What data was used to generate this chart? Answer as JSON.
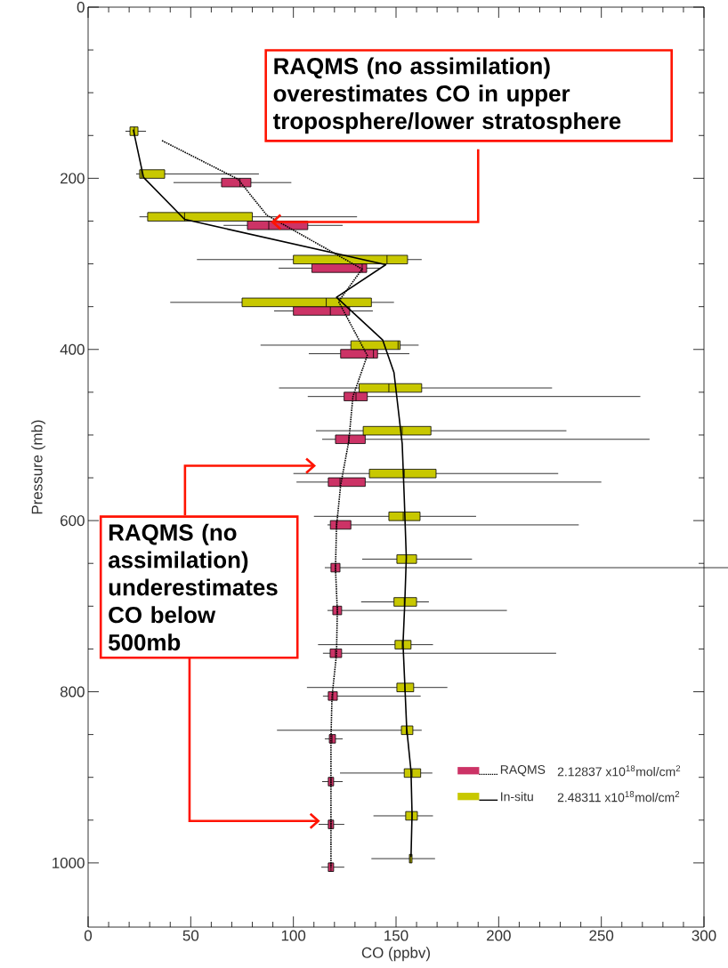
{
  "chart_data": {
    "type": "box",
    "orientation": "horizontal",
    "xlabel": "CO (ppbv)",
    "ylabel": "Pressure (mb)",
    "xlim": [
      0,
      300
    ],
    "xticks": [
      0,
      50,
      100,
      150,
      200,
      250,
      300
    ],
    "ylim": [
      1075,
      0
    ],
    "yticks": [
      0,
      200,
      400,
      600,
      800,
      1000
    ],
    "legend": "bottom right",
    "annotations": [
      {
        "text": "RAQMS (no assimilation) overestimates CO in upper troposphere/lower stratosphere",
        "x": 89,
        "y": 251
      },
      "RAQMS (no assimilation) underestimates CO below 500mb",
      "2.12837 x10$^{18}$mol/cm$^{2}$",
      "2.48311 x10$^{18}$mol/cm$^{2}$"
    ],
    "series": [
      {
        "name": "RAQMS",
        "color": "#cc3366",
        "x": [
          205,
          255,
          305,
          355,
          405,
          455,
          505,
          555,
          605,
          655,
          705,
          755,
          805,
          855,
          905,
          955,
          1005
        ],
        "boxes": [
          {
            "low": 41.6,
            "q1": 65,
            "median": 74,
            "q3": 79.3,
            "high": 99
          },
          {
            "low": 66,
            "q1": 77.6,
            "median": 88,
            "q3": 107,
            "high": 124
          },
          {
            "low": 92.8,
            "q1": 109,
            "median": 133.5,
            "q3": 135.7,
            "high": 142.6
          },
          {
            "low": 90.6,
            "q1": 100,
            "median": 118,
            "q3": 127.4,
            "high": 138.7
          },
          {
            "low": 107.5,
            "q1": 123,
            "median": 139,
            "q3": 141,
            "high": 156.5
          },
          {
            "low": 107,
            "q1": 124.7,
            "median": 130.5,
            "q3": 136,
            "high": 269
          },
          {
            "low": 114,
            "q1": 120.5,
            "median": 127,
            "q3": 135,
            "high": 273.5
          },
          {
            "low": 101.5,
            "q1": 117,
            "median": 122.7,
            "q3": 135,
            "high": 250
          },
          {
            "low": 116.6,
            "q1": 118,
            "median": 121,
            "q3": 128,
            "high": 239
          },
          {
            "low": 115.3,
            "q1": 118.3,
            "median": 120.5,
            "q3": 122.7,
            "high": 312
          },
          {
            "low": 116.6,
            "q1": 119.2,
            "median": 121.4,
            "q3": 123.5,
            "high": 204
          },
          {
            "low": 114.4,
            "q1": 117.9,
            "median": 120.5,
            "q3": 123.5,
            "high": 228
          },
          {
            "low": 114.4,
            "q1": 117,
            "median": 119.2,
            "q3": 121.4,
            "high": 162
          },
          {
            "low": 115.3,
            "q1": 117.5,
            "median": 118.8,
            "q3": 120.5,
            "high": 124
          },
          {
            "low": 114,
            "q1": 117,
            "median": 118.3,
            "q3": 119.6,
            "high": 124
          },
          {
            "low": 112.3,
            "q1": 117,
            "median": 118.3,
            "q3": 119.6,
            "high": 124.8
          },
          {
            "low": 113.6,
            "q1": 117,
            "median": 118.3,
            "q3": 119.6,
            "high": 124.8
          }
        ]
      },
      {
        "name": "In-situ",
        "color": "#c8c800",
        "x": [
          145,
          195,
          245,
          295,
          345,
          395,
          445,
          495,
          545,
          595,
          645,
          695,
          745,
          795,
          845,
          895,
          945,
          995
        ],
        "boxes": [
          {
            "low": 18.2,
            "q1": 20.4,
            "median": 22.5,
            "q3": 24.3,
            "high": 28.2
          },
          {
            "low": 23.4,
            "q1": 25.1,
            "median": 26,
            "q3": 37.3,
            "high": 83.2
          },
          {
            "low": 25,
            "q1": 29,
            "median": 47,
            "q3": 80,
            "high": 131
          },
          {
            "low": 53,
            "q1": 100,
            "median": 145.6,
            "q3": 155.6,
            "high": 162.5
          },
          {
            "low": 40,
            "q1": 75,
            "median": 116,
            "q3": 138,
            "high": 149
          },
          {
            "low": 84,
            "q1": 128,
            "median": 151,
            "q3": 152,
            "high": 161
          },
          {
            "low": 93,
            "q1": 132,
            "median": 146.5,
            "q3": 162.5,
            "high": 226
          },
          {
            "low": 111,
            "q1": 134,
            "median": 153,
            "q3": 167,
            "high": 233
          },
          {
            "low": 100,
            "q1": 137,
            "median": 154,
            "q3": 169.5,
            "high": 229
          },
          {
            "low": 110,
            "q1": 146.5,
            "median": 153.5,
            "q3": 161.7,
            "high": 189
          },
          {
            "low": 133.5,
            "q1": 150.4,
            "median": 155,
            "q3": 160,
            "high": 187
          },
          {
            "low": 133,
            "q1": 149,
            "median": 154,
            "q3": 160,
            "high": 166
          },
          {
            "low": 112,
            "q1": 149.5,
            "median": 153,
            "q3": 157.3,
            "high": 168
          },
          {
            "low": 106.6,
            "q1": 150.4,
            "median": 154.3,
            "q3": 158.6,
            "high": 175
          },
          {
            "low": 92,
            "q1": 152.6,
            "median": 155,
            "q3": 158.2,
            "high": 162.5
          },
          {
            "low": 122.7,
            "q1": 154,
            "median": 157.8,
            "q3": 162,
            "high": 167.7
          },
          {
            "low": 139,
            "q1": 154.7,
            "median": 157.8,
            "q3": 160.4,
            "high": 168
          },
          {
            "low": 138,
            "q1": 156.5,
            "median": 157,
            "q3": 157.8,
            "high": 169
          }
        ]
      },
      {
        "type": "line",
        "color": "#000000",
        "line_style": "dotted",
        "x": [
          156,
          201,
          243,
          289,
          306,
          344,
          407,
          455,
          507,
          559,
          607,
          656,
          705,
          756,
          806,
          856,
          906,
          955,
          1005
        ],
        "values": [
          36,
          73,
          87,
          121,
          133.5,
          122,
          136,
          129,
          127,
          123,
          121,
          120.5,
          121.4,
          121,
          118.8,
          118.3,
          118.3,
          118.3,
          118.3
        ]
      },
      {
        "type": "line",
        "color": "#000000",
        "line_style": "solid",
        "x": [
          143,
          199,
          248,
          301,
          339,
          389,
          427,
          510,
          573,
          643,
          694,
          744,
          793,
          843,
          893,
          943,
          993
        ],
        "values": [
          22,
          27,
          47,
          145,
          121,
          143.5,
          149,
          153,
          154,
          155,
          154.3,
          153.4,
          154.3,
          155.2,
          157.3,
          157.8,
          157.3
        ]
      }
    ]
  }
}
